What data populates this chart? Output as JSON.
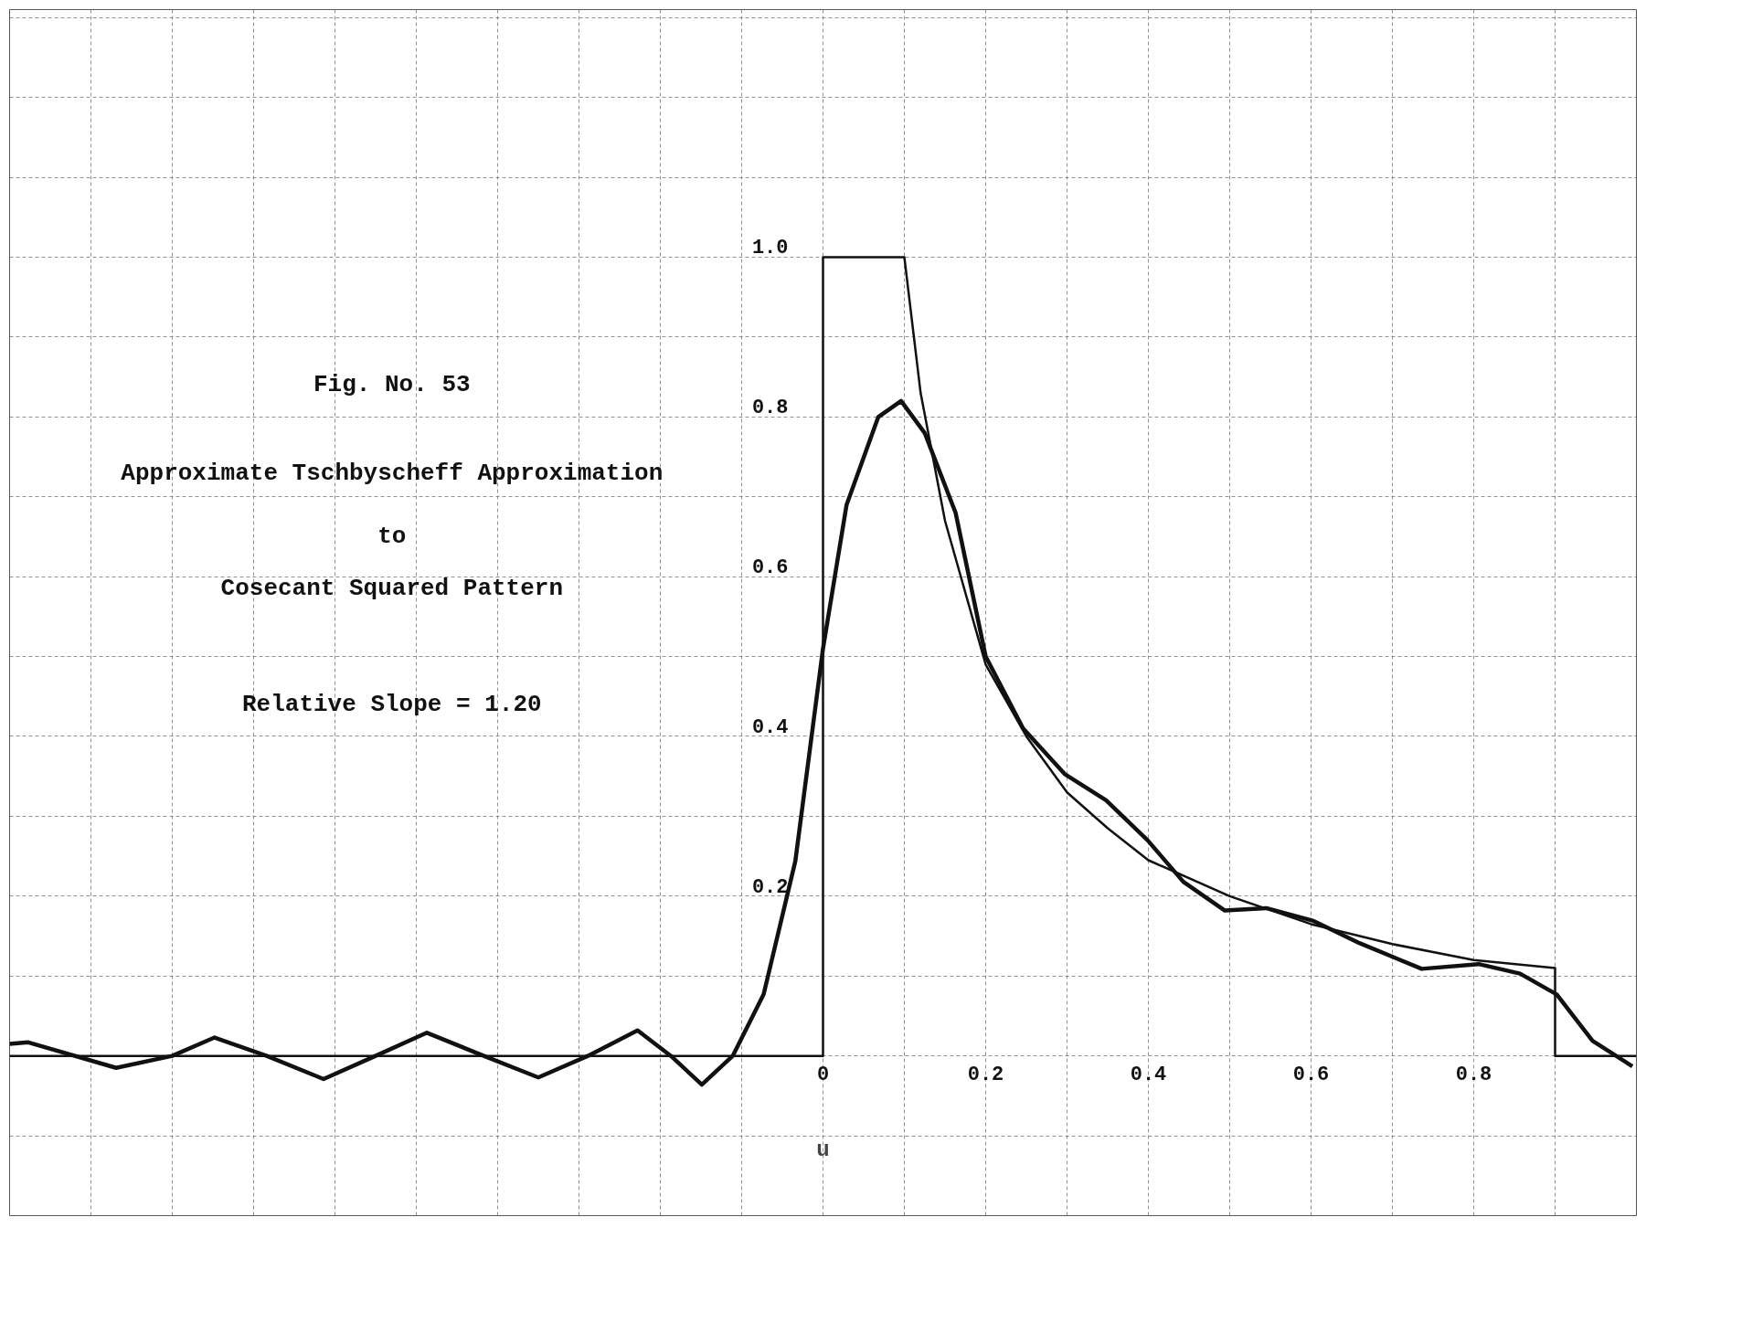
{
  "chart_data": {
    "type": "line",
    "xlabel": "u",
    "annotations": [
      "Fig. No. 53",
      "Approximate Tschbyscheff Approximation",
      "to",
      "Cosecant Squared Pattern",
      "Relative Slope = 1.20"
    ],
    "series": [
      {
        "color": "#111111",
        "x": [
          -1.0,
          0.0,
          0.0,
          0.1,
          0.12,
          0.15,
          0.2,
          0.25,
          0.3,
          0.35,
          0.4,
          0.5,
          0.6,
          0.7,
          0.8,
          0.9,
          0.9,
          1.0
        ],
        "values": [
          0,
          0,
          1.0,
          1.0,
          0.83,
          0.67,
          0.49,
          0.4,
          0.33,
          0.285,
          0.245,
          0.2,
          0.165,
          0.14,
          0.12,
          0.11,
          0,
          0
        ]
      },
      {
        "color": "#111111",
        "x": [
          -1.0,
          -0.977,
          -0.869,
          -0.8,
          -0.748,
          -0.684,
          -0.614,
          -0.55,
          -0.487,
          -0.417,
          -0.35,
          -0.289,
          -0.228,
          -0.187,
          -0.149,
          -0.111,
          -0.073,
          -0.034,
          0.0,
          0.029,
          0.068,
          0.096,
          0.125,
          0.163,
          0.2,
          0.246,
          0.297,
          0.348,
          0.399,
          0.443,
          0.494,
          0.545,
          0.603,
          0.66,
          0.736,
          0.806,
          0.857,
          0.902,
          0.946,
          0.995
        ],
        "values": [
          0.015,
          0.017,
          -0.015,
          0,
          0.023,
          0,
          -0.029,
          0,
          0.029,
          0,
          -0.027,
          0,
          0.032,
          0,
          -0.036,
          0,
          0.077,
          0.244,
          0.51,
          0.69,
          0.8,
          0.82,
          0.78,
          0.68,
          0.5,
          0.41,
          0.353,
          0.32,
          0.27,
          0.218,
          0.182,
          0.185,
          0.169,
          0.141,
          0.109,
          0.115,
          0.103,
          0.077,
          0.019,
          -0.013
        ]
      }
    ],
    "xlim": [
      -1.0,
      1.0
    ],
    "ylim": [
      -0.2,
      1.31
    ],
    "xticks": [
      {
        "value": -0.9,
        "label": null
      },
      {
        "value": -0.8,
        "label": null
      },
      {
        "value": -0.7,
        "label": null
      },
      {
        "value": -0.6,
        "label": null
      },
      {
        "value": -0.5,
        "label": null
      },
      {
        "value": -0.4,
        "label": null
      },
      {
        "value": -0.3,
        "label": null
      },
      {
        "value": -0.2,
        "label": null
      },
      {
        "value": -0.1,
        "label": null
      },
      0,
      {
        "value": 0.1,
        "label": null
      },
      0.2,
      {
        "value": 0.3,
        "label": null
      },
      0.4,
      {
        "value": 0.5,
        "label": null
      },
      0.6,
      {
        "value": 0.7,
        "label": null
      },
      0.8,
      {
        "value": 0.9,
        "label": null
      }
    ],
    "yticks": [
      {
        "value": -0.1,
        "label": null
      },
      {
        "value": 0,
        "label": null
      },
      {
        "value": 0.1,
        "label": null
      },
      0.2,
      {
        "value": 0.3,
        "label": null
      },
      0.4,
      {
        "value": 0.5,
        "label": null
      },
      0.6,
      {
        "value": 0.7,
        "label": null
      },
      0.8,
      {
        "value": 0.9,
        "label": null
      },
      {
        "value": 1.0,
        "label": "1.0"
      },
      {
        "value": 1.1,
        "label": null
      },
      {
        "value": 1.2,
        "label": null
      },
      {
        "value": 1.3,
        "label": null
      }
    ],
    "grid": true,
    "line_style": "solid"
  }
}
